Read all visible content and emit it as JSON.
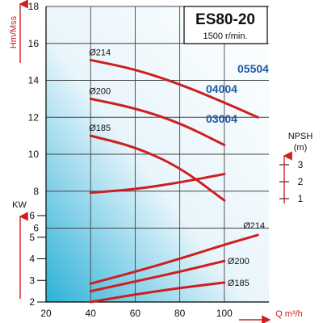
{
  "chart_data": {
    "type": "line",
    "title": "ES80-20",
    "subtitle": "1500 r/min.",
    "xlabel": "Q m³/h",
    "x_axis": {
      "range": [
        20,
        120
      ],
      "ticks": [
        "20",
        "40",
        "60",
        "80",
        "100"
      ]
    },
    "head_axis": {
      "label": "Hm/Mss",
      "range": [
        2,
        18
      ],
      "ticks": [
        "2",
        "4",
        "6",
        "8",
        "10",
        "12",
        "14",
        "16",
        "18"
      ]
    },
    "power_axis": {
      "label": "KW",
      "range": [
        2,
        6
      ],
      "ticks": [
        "2",
        "3",
        "4",
        "5",
        "6"
      ]
    },
    "npsh_axis": {
      "label_top": "NPSH",
      "label_unit": "(m)",
      "ticks": [
        "3",
        "2",
        "1"
      ]
    },
    "grid": true,
    "head_curves": [
      {
        "model": "05504",
        "diameter": "Ø214",
        "x": [
          40,
          60,
          80,
          100,
          115
        ],
        "y": [
          15.1,
          14.6,
          13.8,
          12.8,
          12.0
        ]
      },
      {
        "model": "04004",
        "diameter": "Ø200",
        "x": [
          40,
          60,
          80,
          100
        ],
        "y": [
          13.0,
          12.5,
          11.7,
          10.5
        ]
      },
      {
        "model": "03004",
        "diameter": "Ø185",
        "x": [
          40,
          60,
          80,
          100
        ],
        "y": [
          11.0,
          10.4,
          9.3,
          7.5
        ]
      }
    ],
    "npsh_curve": {
      "x": [
        40,
        60,
        80,
        100
      ],
      "y": [
        1.35,
        1.55,
        1.95,
        2.45
      ]
    },
    "power_curves": [
      {
        "diameter": "Ø214",
        "x": [
          40,
          60,
          80,
          100,
          115
        ],
        "y": [
          2.85,
          3.4,
          4.0,
          4.65,
          5.1
        ]
      },
      {
        "diameter": "Ø200",
        "x": [
          40,
          60,
          80,
          100
        ],
        "y": [
          2.5,
          2.95,
          3.4,
          3.9
        ]
      },
      {
        "diameter": "Ø185",
        "x": [
          40,
          60,
          80,
          100
        ],
        "y": [
          2.0,
          2.35,
          2.65,
          2.9
        ]
      }
    ],
    "colors": {
      "curve": "#cc1f1f",
      "axis_label": "#cc1f1f",
      "model_label": "#1f5aa0",
      "grid": "#444444",
      "bg_top": "#ffffff",
      "bg_bottom": "#2db1d8"
    }
  }
}
